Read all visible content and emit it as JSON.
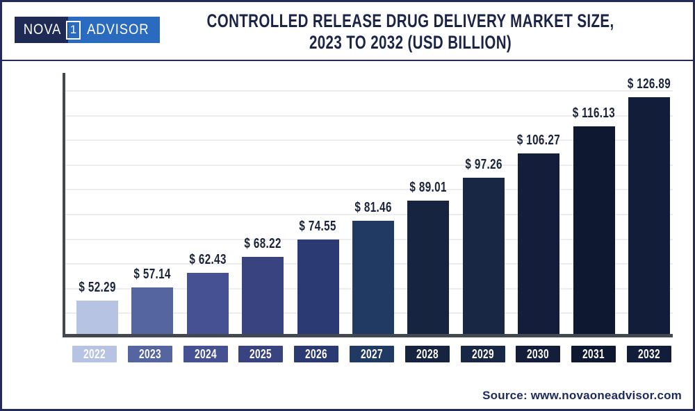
{
  "brand": {
    "logo_nova": "NOVA",
    "logo_one": "1",
    "logo_advisor": "ADVISOR"
  },
  "header": {
    "title_line1": "CONTROLLED RELEASE DRUG DELIVERY MARKET SIZE,",
    "title_line2": "2023 TO 2032 (USD BILLION)"
  },
  "footer": {
    "source": "Source: www.novaoneadvisor.com"
  },
  "colors": {
    "brand_navy": "#1f2a55",
    "brand_blue": "#2a6bbf",
    "border_navy": "#262a5a",
    "title_navy": "#1b2447",
    "axis": "#43474f",
    "gridline": "#ededed",
    "value_label": "#1a2339"
  },
  "chart_data": {
    "type": "bar",
    "title": "Controlled Release Drug Delivery Market Size, 2023 to 2032 (USD Billion)",
    "unit": "USD Billion",
    "currency_prefix": "$ ",
    "categories": [
      "2022",
      "2023",
      "2024",
      "2025",
      "2026",
      "2027",
      "2028",
      "2029",
      "2030",
      "2031",
      "2032"
    ],
    "values": [
      52.29,
      57.14,
      62.43,
      68.22,
      74.55,
      81.46,
      89.01,
      97.26,
      106.27,
      116.13,
      126.89
    ],
    "value_labels": [
      "$ 52.29",
      "$ 57.14",
      "$ 62.43",
      "$ 68.22",
      "$ 74.55",
      "$ 81.46",
      "$ 89.01",
      "$ 97.26",
      "$ 106.27",
      "$ 116.13",
      "$ 126.89"
    ],
    "bar_colors": [
      "#b7c3e3",
      "#5565a0",
      "#455192",
      "#394380",
      "#2b3a72",
      "#203a63",
      "#16243f",
      "#182743",
      "#141e3a",
      "#0f1831",
      "#121d3a"
    ],
    "xlabel": "",
    "ylabel": "",
    "ylim": [
      40,
      137
    ],
    "grid": true,
    "gridline_count": 10,
    "legend": false
  }
}
